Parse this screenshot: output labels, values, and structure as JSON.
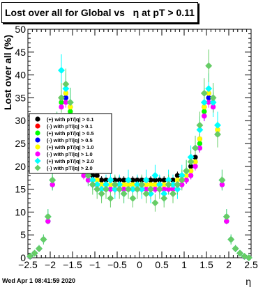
{
  "title_prefix": "Lost over all for Global vs",
  "title_symbol": "η",
  "title_suffix": "at pT > 0.11",
  "xlabel": "η",
  "ylabel": "Lost over all (%)",
  "datestamp": "Wed Apr  1 08:41:59 2020",
  "chart_data": {
    "type": "scatter",
    "title": "Lost over all for Global vs  η at pT > 0.11",
    "xlabel": "η",
    "ylabel": "Lost over all (%)",
    "xlim": [
      -2.5,
      2.5
    ],
    "ylim": [
      0,
      50
    ],
    "x_ticks": [
      -2.5,
      -2,
      -1.5,
      -1,
      -0.5,
      0,
      0.5,
      1,
      1.5,
      2,
      2.5
    ],
    "x_tick_labels": [
      "−2.5",
      "−2",
      "−1.5",
      "−1",
      "−0.5",
      "0",
      "0.5",
      "1",
      "1.5",
      "2",
      "2.5"
    ],
    "y_ticks": [
      0,
      5,
      10,
      15,
      20,
      25,
      30,
      35,
      40,
      45,
      50
    ],
    "y_tick_labels": [
      "0",
      "5",
      "10",
      "15",
      "20",
      "25",
      "30",
      "35",
      "40",
      "45",
      "50"
    ],
    "grid": false,
    "legend_position": "left",
    "x": [
      -2.45,
      -2.35,
      -2.25,
      -2.15,
      -2.05,
      -1.95,
      -1.85,
      -1.75,
      -1.65,
      -1.55,
      -1.45,
      -1.35,
      -1.25,
      -1.15,
      -1.05,
      -0.95,
      -0.85,
      -0.75,
      -0.65,
      -0.55,
      -0.45,
      -0.35,
      -0.25,
      -0.15,
      -0.05,
      0.05,
      0.15,
      0.25,
      0.35,
      0.45,
      0.55,
      0.65,
      0.75,
      0.85,
      0.95,
      1.05,
      1.15,
      1.25,
      1.35,
      1.45,
      1.55,
      1.65,
      1.75,
      1.85,
      1.95,
      2.05,
      2.15,
      2.25,
      2.35,
      2.45
    ],
    "series": [
      {
        "name": "(+) with pT/|q| > 0.1",
        "color": "#000000",
        "marker": "circle",
        "y": [
          0.3,
          1,
          2,
          4,
          9,
          17,
          28,
          35,
          36,
          33,
          26,
          22,
          20,
          19,
          18,
          18,
          17,
          17,
          17,
          17,
          17,
          17,
          17,
          17,
          17,
          17,
          17,
          17,
          17,
          17,
          17,
          17,
          17,
          18,
          18,
          19,
          20,
          22,
          26,
          33,
          36,
          35,
          28,
          17,
          9,
          4,
          2,
          1,
          0.3,
          0
        ]
      },
      {
        "name": "(-) with pT/|q| > 0.1",
        "color": "#ff0000",
        "marker": "circle",
        "y": [
          0.3,
          1,
          2,
          4,
          9,
          17,
          28,
          34,
          35,
          32,
          25,
          21,
          19,
          18,
          17,
          17,
          16,
          16,
          16,
          16,
          16,
          16,
          16,
          16,
          16,
          16,
          16,
          16,
          16,
          16,
          16,
          16,
          16,
          17,
          17,
          18,
          19,
          21,
          25,
          32,
          35,
          34,
          28,
          17,
          9,
          4,
          2,
          1,
          0.3,
          0
        ]
      },
      {
        "name": "(+) with pT/|q| > 0.5",
        "color": "#00ff00",
        "marker": "circle",
        "y": [
          0.2,
          1,
          2,
          4,
          8,
          16,
          27,
          34,
          35,
          32,
          25,
          21,
          19,
          18,
          17,
          16,
          16,
          16,
          16,
          16,
          16,
          16,
          16,
          16,
          16,
          16,
          16,
          16,
          16,
          16,
          16,
          16,
          16,
          16,
          17,
          18,
          19,
          21,
          25,
          32,
          35,
          34,
          27,
          16,
          8,
          4,
          2,
          1,
          0.2,
          0
        ]
      },
      {
        "name": "(-) with pT/|q| > 0.5",
        "color": "#0000ff",
        "marker": "circle",
        "y": [
          0.2,
          1,
          2,
          4,
          8,
          16,
          27,
          33,
          35,
          31,
          24,
          20,
          18,
          17,
          16,
          16,
          15,
          15,
          15,
          15,
          15,
          15,
          15,
          15,
          15,
          15,
          15,
          15,
          15,
          15,
          15,
          15,
          15,
          16,
          16,
          17,
          18,
          20,
          24,
          31,
          35,
          33,
          27,
          16,
          8,
          4,
          2,
          1,
          0.2,
          0
        ]
      },
      {
        "name": "(+) with pT/|q| > 1.0",
        "color": "#ffff00",
        "marker": "circle",
        "y": [
          0.3,
          1,
          2,
          4,
          9,
          17,
          28,
          35,
          36,
          33,
          26,
          21,
          19,
          18,
          17,
          17,
          16,
          16,
          16,
          16,
          16,
          16,
          16,
          16,
          16,
          16,
          16,
          16,
          16,
          16,
          16,
          16,
          16,
          17,
          17,
          18,
          19,
          21,
          26,
          33,
          36,
          35,
          28,
          17,
          9,
          4,
          2,
          1,
          0.3,
          0
        ]
      },
      {
        "name": "(-) with pT/|q| > 1.0",
        "color": "#ff00ff",
        "marker": "circle",
        "y": [
          0.2,
          1,
          2,
          4,
          8,
          16,
          27,
          33,
          34,
          31,
          24,
          20,
          18,
          17,
          16,
          15,
          15,
          15,
          15,
          15,
          15,
          15,
          15,
          15,
          15,
          15,
          15,
          15,
          15,
          15,
          15,
          15,
          15,
          15,
          16,
          17,
          18,
          20,
          24,
          31,
          34,
          33,
          27,
          16,
          8,
          4,
          2,
          1,
          0.2,
          0
        ]
      },
      {
        "name": "(+) with pT/|q| > 2.0",
        "color": "#00ffff",
        "marker": "diamond",
        "y": [
          0.3,
          1,
          2,
          4,
          9,
          17,
          29,
          41,
          37,
          34,
          26,
          22,
          20,
          18,
          17,
          16,
          15,
          16,
          17,
          15,
          16,
          14,
          17,
          15,
          16,
          15,
          17,
          14,
          18,
          16,
          14,
          17,
          16,
          15,
          18,
          19,
          22,
          24,
          28,
          34,
          37,
          34,
          29,
          17,
          9,
          4,
          2,
          1,
          0.3,
          0
        ]
      },
      {
        "name": "(-) with pT/|q| > 2.0",
        "color": "#66cc66",
        "marker": "diamond",
        "y": [
          0.3,
          1,
          2,
          4,
          9,
          17,
          29,
          35,
          38,
          34,
          27,
          22,
          20,
          18,
          16,
          15,
          14,
          15,
          13,
          16,
          15,
          14,
          15,
          13,
          15,
          16,
          14,
          15,
          12,
          15,
          13,
          16,
          14,
          16,
          17,
          19,
          21,
          24,
          29,
          36,
          42,
          35,
          27,
          17,
          9,
          4,
          2,
          1,
          0.3,
          0
        ]
      }
    ]
  }
}
